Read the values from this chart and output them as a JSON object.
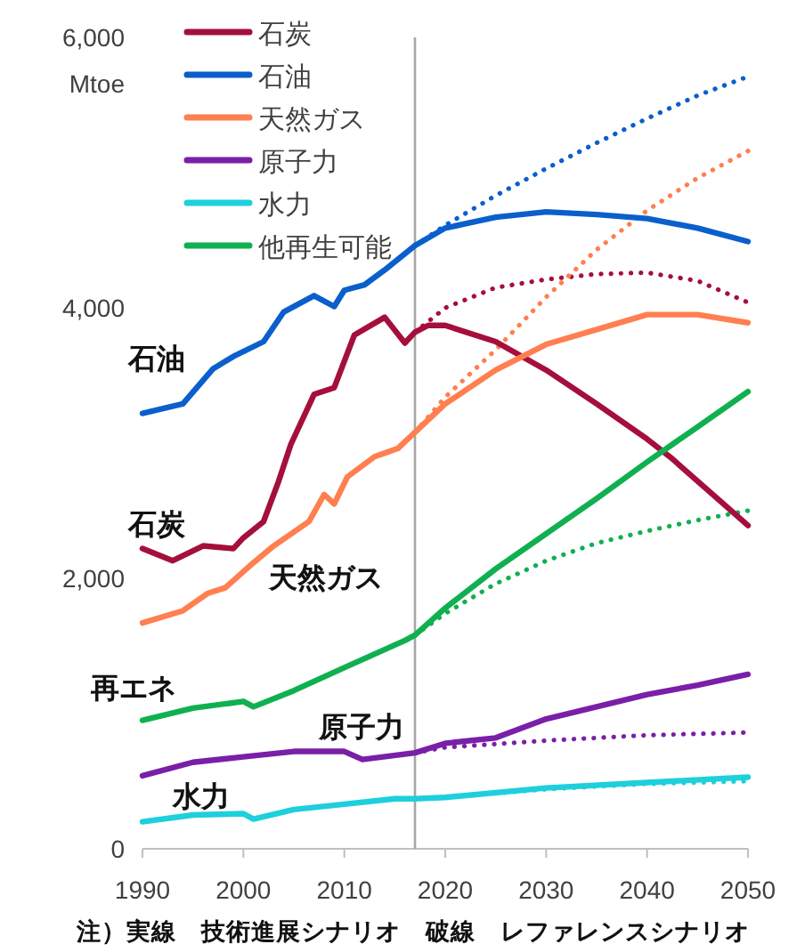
{
  "chart_data": {
    "type": "line",
    "ylabel": "Mtoe",
    "xlim": [
      1990,
      2050
    ],
    "ylim": [
      0,
      6000
    ],
    "xticks": [
      1990,
      2000,
      2010,
      2020,
      2030,
      2040,
      2050
    ],
    "yticks": [
      0,
      {
        "value": 2000,
        "label": "2,000"
      },
      {
        "value": 4000,
        "label": "4,000"
      },
      {
        "value": 6000,
        "label": "6,000"
      }
    ],
    "grid": false,
    "legend": "top left",
    "marker": "none",
    "ref_lines": [
      {
        "axis": "x",
        "value": 2017,
        "color": "#a6a6a6"
      }
    ],
    "annotations": [
      "石油",
      "石炭",
      "天然ガス",
      "再エネ",
      "原子力",
      "水力",
      "注）実線　技術進展シナリオ　破線　レファレンスシナリオ"
    ],
    "series": [
      {
        "name": "石炭",
        "color": "#a50f3c",
        "line_style": "solid",
        "x": [
          1990,
          1993,
          1996,
          1999,
          2000,
          2002,
          2003.5,
          2004.7,
          2007,
          2009,
          2011,
          2014,
          2016,
          2017,
          2018.3,
          2020,
          2025,
          2030,
          2035,
          2040,
          2042.4,
          2050
        ],
        "values": [
          2220,
          2130,
          2240,
          2220,
          2300,
          2420,
          2720,
          2990,
          3360,
          3410,
          3800,
          3930,
          3740,
          3820,
          3870,
          3870,
          3750,
          3540,
          3290,
          3030,
          2890,
          2390
        ]
      },
      {
        "name": "石油",
        "color": "#0a5fcc",
        "line_style": "solid",
        "x": [
          1990,
          1994,
          1997,
          1999,
          2002,
          2004,
          2007,
          2009,
          2010,
          2012,
          2014,
          2017,
          2020,
          2025,
          2030,
          2035,
          2040,
          2045,
          2050
        ],
        "values": [
          3220,
          3290,
          3550,
          3640,
          3750,
          3970,
          4090,
          4010,
          4130,
          4170,
          4280,
          4460,
          4590,
          4670,
          4710,
          4690,
          4660,
          4590,
          4490
        ]
      },
      {
        "name": "天然ガス",
        "color": "#ff7f50",
        "line_style": "solid",
        "x": [
          1990,
          1994,
          1996.5,
          1998.2,
          2000.6,
          2003,
          2006.5,
          2008,
          2009,
          2010.3,
          2013,
          2015.3,
          2017,
          2020,
          2025,
          2030,
          2035,
          2040,
          2045,
          2050
        ],
        "values": [
          1670,
          1760,
          1890,
          1930,
          2090,
          2240,
          2420,
          2620,
          2550,
          2750,
          2900,
          2960,
          3080,
          3290,
          3540,
          3730,
          3840,
          3950,
          3950,
          3890
        ]
      },
      {
        "name": "原子力",
        "color": "#7a1fa8",
        "line_style": "solid",
        "x": [
          1990,
          1995,
          2000,
          2005,
          2010,
          2011.8,
          2017,
          2020,
          2025,
          2030,
          2035,
          2040,
          2045,
          2050
        ],
        "values": [
          540,
          640,
          680,
          720,
          720,
          660,
          710,
          780,
          820,
          960,
          1050,
          1140,
          1210,
          1290
        ]
      },
      {
        "name": "水力",
        "color": "#1ecfdc",
        "line_style": "solid",
        "x": [
          1990,
          1995,
          2000,
          2001,
          2005,
          2010,
          2015,
          2017,
          2020,
          2030,
          2040,
          2050
        ],
        "values": [
          200,
          250,
          260,
          220,
          290,
          330,
          370,
          370,
          380,
          450,
          490,
          530
        ]
      },
      {
        "name": "他再生可能",
        "color": "#10b050",
        "line_style": "solid",
        "x": [
          1990,
          1995,
          2000,
          2001,
          2005,
          2010,
          2016,
          2017,
          2020,
          2025,
          2030,
          2035,
          2040,
          2045,
          2050
        ],
        "values": [
          950,
          1040,
          1090,
          1050,
          1170,
          1340,
          1540,
          1580,
          1780,
          2070,
          2330,
          2590,
          2860,
          3120,
          3380
        ]
      },
      {
        "color": "#a50f3c",
        "line_style": "dotted",
        "x": [
          2017,
          2020,
          2025,
          2030,
          2035,
          2040,
          2045,
          2050
        ],
        "values": [
          3820,
          4000,
          4150,
          4210,
          4250,
          4260,
          4200,
          4040
        ]
      },
      {
        "color": "#0a5fcc",
        "line_style": "dotted",
        "x": [
          2017,
          2020,
          2025,
          2030,
          2035,
          2040,
          2045,
          2050
        ],
        "values": [
          4460,
          4610,
          4830,
          5030,
          5220,
          5400,
          5570,
          5710
        ]
      },
      {
        "color": "#ff7f50",
        "line_style": "dotted",
        "x": [
          2017,
          2020,
          2025,
          2030,
          2035,
          2040,
          2045,
          2050
        ],
        "values": [
          3080,
          3340,
          3690,
          4080,
          4430,
          4720,
          4960,
          5160
        ]
      },
      {
        "color": "#7a1fa8",
        "line_style": "dotted",
        "x": [
          2017,
          2020,
          2030,
          2040,
          2050
        ],
        "values": [
          710,
          750,
          800,
          840,
          860
        ]
      },
      {
        "color": "#1ecfdc",
        "line_style": "dotted",
        "x": [
          2017,
          2020,
          2030,
          2040,
          2050
        ],
        "values": [
          370,
          380,
          440,
          480,
          500
        ]
      },
      {
        "color": "#10b050",
        "line_style": "dotted",
        "x": [
          2017,
          2020,
          2025,
          2030,
          2035,
          2040,
          2045,
          2050
        ],
        "values": [
          1580,
          1740,
          1960,
          2130,
          2260,
          2350,
          2430,
          2500
        ]
      }
    ]
  }
}
